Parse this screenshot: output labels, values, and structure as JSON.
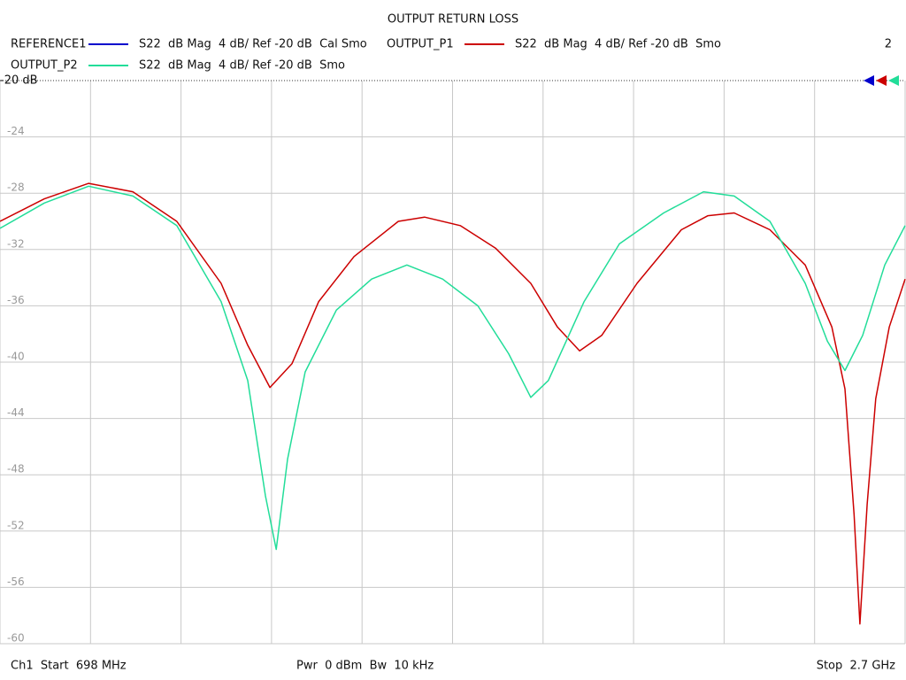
{
  "chart_data": {
    "type": "line",
    "title": "OUTPUT RETURN LOSS",
    "reference_label": "-20 dB",
    "window_number": "2",
    "footer": {
      "start": "Ch1  Start  698 MHz",
      "power": "Pwr  0 dBm  Bw  10 kHz",
      "stop": "Stop  2.7 GHz"
    },
    "xlim": [
      698,
      2700
    ],
    "xticks": [
      698,
      898.2,
      1098.4,
      1298.6,
      1498.8,
      1699,
      1899.2,
      2099.4,
      2299.6,
      2499.8,
      2700
    ],
    "ylim": [
      -60,
      -20
    ],
    "yticks": [
      -20,
      -24,
      -28,
      -32,
      -36,
      -40,
      -44,
      -48,
      -52,
      -56,
      -60
    ],
    "grid": true,
    "series": [
      {
        "name": "REFERENCE1",
        "caption": "S22  dB Mag  4 dB/ Ref -20 dB  Cal Smo",
        "color": "#0000cc",
        "x": [],
        "values": []
      },
      {
        "name": "OUTPUT_P1",
        "caption": "S22  dB Mag  4 dB/ Ref -20 dB  Smo",
        "color": "#cc0000",
        "x": [
          698,
          796,
          894,
          992,
          1089,
          1187,
          1246,
          1295,
          1344,
          1403,
          1481,
          1579,
          1637,
          1716,
          1794,
          1872,
          1931,
          1980,
          2029,
          2107,
          2205,
          2264,
          2322,
          2401,
          2479,
          2538,
          2567,
          2587,
          2600,
          2616,
          2635,
          2665,
          2700
        ],
        "values": [
          -30.0,
          -28.4,
          -27.3,
          -27.9,
          -30.0,
          -34.4,
          -38.8,
          -41.8,
          -40.1,
          -35.7,
          -32.5,
          -30.0,
          -29.7,
          -30.3,
          -31.9,
          -34.4,
          -37.5,
          -39.2,
          -38.1,
          -34.4,
          -30.6,
          -29.6,
          -29.4,
          -30.6,
          -33.1,
          -37.5,
          -41.9,
          -50.8,
          -58.6,
          -50.1,
          -42.6,
          -37.5,
          -34.1
        ]
      },
      {
        "name": "OUTPUT_P2",
        "caption": "S22  dB Mag  4 dB/ Ref -20 dB  Smo",
        "color": "#22dd99",
        "x": [
          698,
          796,
          894,
          992,
          1089,
          1187,
          1246,
          1285,
          1309,
          1334,
          1373,
          1442,
          1520,
          1598,
          1677,
          1755,
          1823,
          1872,
          1911,
          1990,
          2068,
          2166,
          2254,
          2322,
          2401,
          2479,
          2528,
          2567,
          2606,
          2655,
          2700
        ],
        "values": [
          -30.5,
          -28.7,
          -27.5,
          -28.2,
          -30.3,
          -35.7,
          -41.3,
          -49.5,
          -53.3,
          -46.9,
          -40.7,
          -36.3,
          -34.1,
          -33.1,
          -34.1,
          -36.0,
          -39.4,
          -42.5,
          -41.3,
          -35.7,
          -31.6,
          -29.4,
          -27.9,
          -28.2,
          -30.0,
          -34.4,
          -38.5,
          -40.6,
          -38.1,
          -33.1,
          -30.3
        ]
      }
    ]
  }
}
